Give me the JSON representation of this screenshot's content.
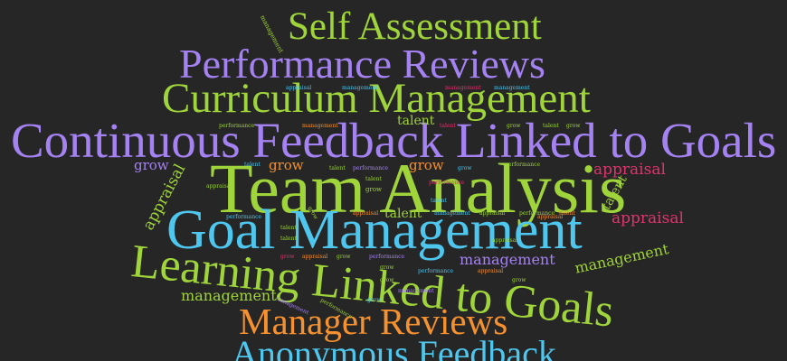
{
  "colors": {
    "background": "#262626",
    "lime": "#9fd43a",
    "purple": "#a582f2",
    "cyan": "#4ec6ee",
    "orange": "#f5912e",
    "pink": "#e0336e"
  },
  "words": [
    {
      "text": "Self Assessment",
      "color": "#9fd43a"
    },
    {
      "text": "Performance Reviews",
      "color": "#a582f2"
    },
    {
      "text": "Curriculum Management",
      "color": "#9fd43a"
    },
    {
      "text": "Continuous Feedback Linked to Goals",
      "color": "#a582f2"
    },
    {
      "text": "Team Analysis",
      "color": "#9fd43a"
    },
    {
      "text": "Goal Management",
      "color": "#4ec6ee"
    },
    {
      "text": "Learning Linked to Goals",
      "color": "#9fd43a"
    },
    {
      "text": "Manager Reviews",
      "color": "#f5912e"
    },
    {
      "text": "Anonymous Feedback",
      "color": "#4ec6ee"
    },
    {
      "text": "appraisal",
      "color": "#e0336e"
    },
    {
      "text": "appraisal",
      "color": "#e0336e"
    },
    {
      "text": "appraisal",
      "color": "#9fd43a"
    },
    {
      "text": "management",
      "color": "#9fd43a"
    },
    {
      "text": "management",
      "color": "#a582f2"
    },
    {
      "text": "management",
      "color": "#9fd43a"
    },
    {
      "text": "talent",
      "color": "#9fd43a"
    },
    {
      "text": "talent",
      "color": "#9fd43a"
    },
    {
      "text": "talent",
      "color": "#9fd43a"
    },
    {
      "text": "grow",
      "color": "#a582f2"
    },
    {
      "text": "grow",
      "color": "#f5912e"
    },
    {
      "text": "grow",
      "color": "#f5912e"
    },
    {
      "text": "management",
      "color": "#9fd43a"
    },
    {
      "text": "management",
      "color": "#a582f2"
    },
    {
      "text": "appraisal",
      "color": "#4ec6ee"
    },
    {
      "text": "management",
      "color": "#4ec6ee"
    },
    {
      "text": "management",
      "color": "#e0336e"
    },
    {
      "text": "management",
      "color": "#4ec6ee"
    },
    {
      "text": "performance",
      "color": "#9fd43a"
    },
    {
      "text": "management",
      "color": "#f5912e"
    },
    {
      "text": "talent",
      "color": "#e0336e"
    },
    {
      "text": "grow",
      "color": "#9fd43a"
    },
    {
      "text": "talent",
      "color": "#9fd43a"
    },
    {
      "text": "grow",
      "color": "#9fd43a"
    },
    {
      "text": "talent",
      "color": "#4ec6ee"
    },
    {
      "text": "performance",
      "color": "#a582f2"
    },
    {
      "text": "talent",
      "color": "#9fd43a"
    },
    {
      "text": "grow",
      "color": "#4ec6ee"
    },
    {
      "text": "performance",
      "color": "#9fd43a"
    },
    {
      "text": "talent",
      "color": "#9fd43a"
    },
    {
      "text": "grow",
      "color": "#9fd43a"
    },
    {
      "text": "talent",
      "color": "#4ec6ee"
    },
    {
      "text": "appraisal",
      "color": "#f5912e"
    },
    {
      "text": "management",
      "color": "#4ec6ee"
    },
    {
      "text": "appraisal",
      "color": "#9fd43a"
    },
    {
      "text": "performance",
      "color": "#9fd43a"
    },
    {
      "text": "appraisal",
      "color": "#f5912e"
    },
    {
      "text": "talent",
      "color": "#f5912e"
    },
    {
      "text": "performance",
      "color": "#4ec6ee"
    },
    {
      "text": "talent",
      "color": "#9fd43a"
    },
    {
      "text": "talent",
      "color": "#9fd43a"
    },
    {
      "text": "grow",
      "color": "#e0336e"
    },
    {
      "text": "appraisal",
      "color": "#f5912e"
    },
    {
      "text": "performance",
      "color": "#a582f2"
    },
    {
      "text": "grow",
      "color": "#9fd43a"
    },
    {
      "text": "grow",
      "color": "#9fd43a"
    },
    {
      "text": "performance",
      "color": "#4ec6ee"
    },
    {
      "text": "appraisal",
      "color": "#f5912e"
    },
    {
      "text": "grow",
      "color": "#9fd43a"
    },
    {
      "text": "performance",
      "color": "#e0336e"
    },
    {
      "text": "grow",
      "color": "#9fd43a"
    },
    {
      "text": "management",
      "color": "#a582f2"
    },
    {
      "text": "performance",
      "color": "#9fd43a"
    },
    {
      "text": "grow",
      "color": "#4ec6ee"
    },
    {
      "text": "appraisal",
      "color": "#9fd43a"
    },
    {
      "text": "appraisal",
      "color": "#9fd43a"
    },
    {
      "text": "grow",
      "color": "#9fd43a"
    }
  ]
}
